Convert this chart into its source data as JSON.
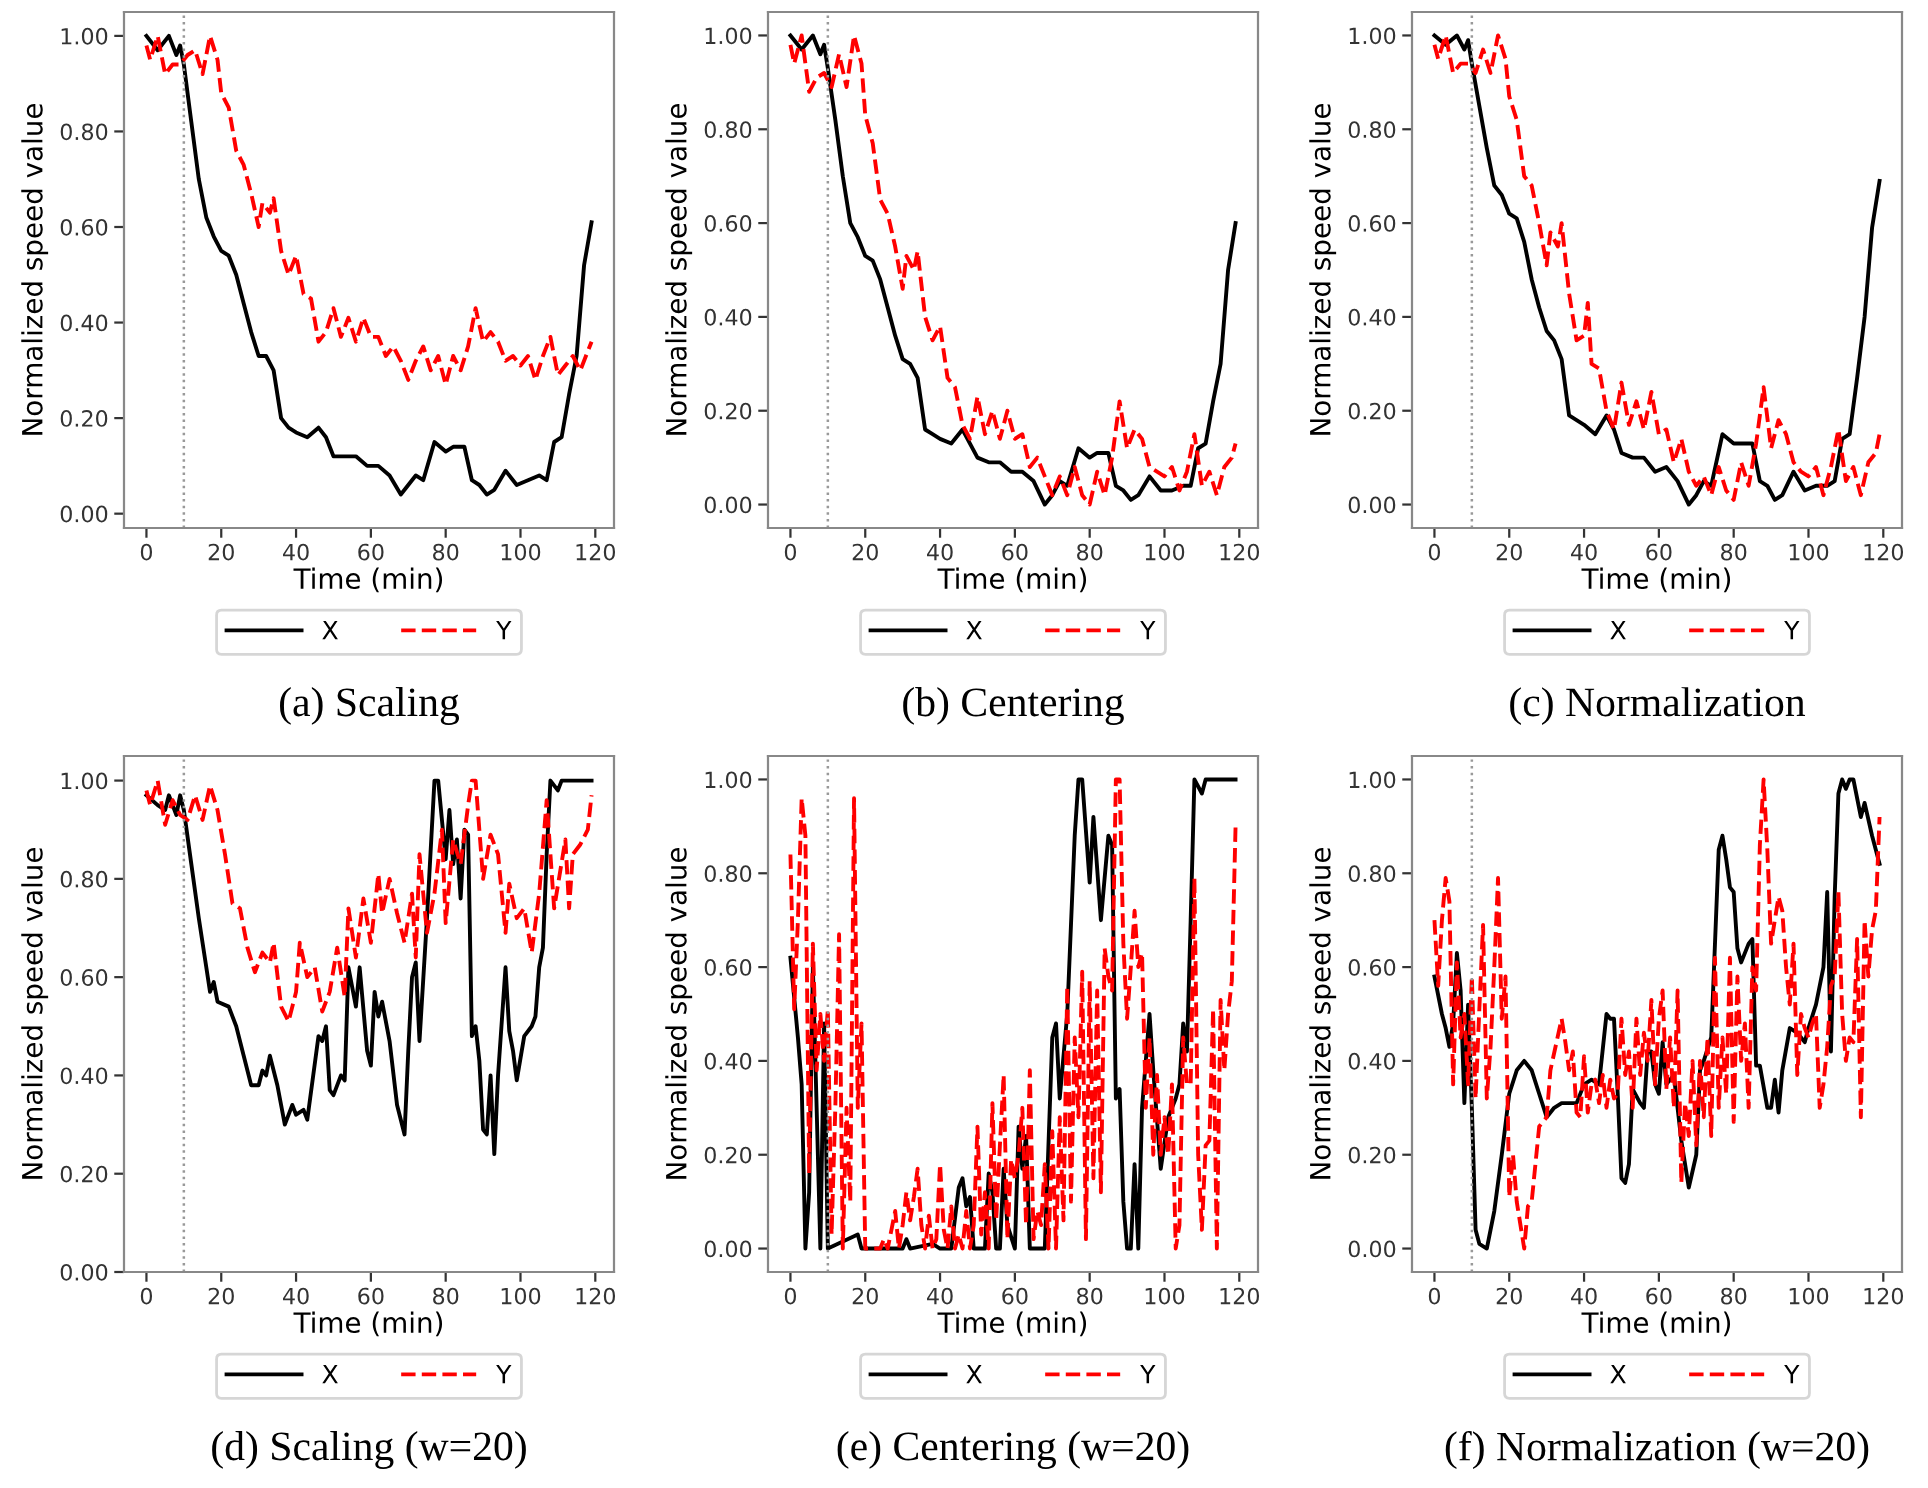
{
  "chart_data": [
    {
      "type": "line",
      "title": "(a) Scaling",
      "xlabel": "Time (min)",
      "ylabel": "Normalized speed value",
      "xlim": [
        -6,
        125
      ],
      "xticks": [
        0,
        20,
        40,
        60,
        80,
        100,
        120
      ],
      "ylim": [
        -0.03,
        1.05
      ],
      "yticks": [
        {
          "value": 0,
          "label": "0.00"
        },
        {
          "value": 0.2,
          "label": "0.20"
        },
        {
          "value": 0.4,
          "label": "0.40"
        },
        {
          "value": 0.6,
          "label": "0.60"
        },
        {
          "value": 0.8,
          "label": "0.80"
        },
        {
          "value": 1,
          "label": "1.00"
        }
      ],
      "legend": "bottom",
      "ref_lines": [
        {
          "axis": "x",
          "value": 10,
          "color": "#999999",
          "line_style": "dotted"
        }
      ],
      "series": [
        {
          "name": "X",
          "color": "#000000",
          "line_style": "solid",
          "x": [
            0,
            3,
            6,
            8,
            9,
            10,
            12,
            14,
            16,
            18,
            20,
            22,
            24,
            26,
            28,
            30,
            32,
            34,
            36,
            38,
            40,
            43,
            46,
            48,
            50,
            53,
            56,
            59,
            62,
            65,
            68,
            70,
            72,
            74,
            77,
            80,
            82,
            85,
            87,
            89,
            91,
            93,
            96,
            99,
            102,
            105,
            107,
            109,
            111,
            113,
            115,
            117,
            119
          ],
          "values": [
            1.0,
            0.97,
            1.0,
            0.96,
            0.98,
            0.94,
            0.82,
            0.7,
            0.62,
            0.58,
            0.55,
            0.54,
            0.5,
            0.44,
            0.38,
            0.33,
            0.33,
            0.3,
            0.2,
            0.18,
            0.17,
            0.16,
            0.18,
            0.16,
            0.12,
            0.12,
            0.12,
            0.1,
            0.1,
            0.08,
            0.04,
            0.06,
            0.08,
            0.07,
            0.15,
            0.13,
            0.14,
            0.14,
            0.07,
            0.06,
            0.04,
            0.05,
            0.09,
            0.06,
            0.07,
            0.08,
            0.07,
            0.15,
            0.16,
            0.25,
            0.33,
            0.52,
            0.61
          ]
        },
        {
          "name": "Y",
          "color": "#ff0000",
          "line_style": "dashed",
          "x": [
            0,
            1,
            3,
            5,
            7,
            9,
            11,
            13,
            15,
            17,
            19,
            20,
            22,
            24,
            26,
            28,
            30,
            31,
            33,
            34,
            36,
            38,
            40,
            42,
            44,
            46,
            48,
            50,
            52,
            54,
            56,
            58,
            60,
            62,
            64,
            66,
            68,
            70,
            72,
            74,
            76,
            78,
            80,
            82,
            84,
            86,
            88,
            90,
            92,
            94,
            96,
            98,
            100,
            102,
            104,
            106,
            108,
            110,
            112,
            114,
            116,
            118,
            119
          ],
          "values": [
            0.98,
            0.95,
            1.0,
            0.92,
            0.94,
            0.94,
            0.96,
            0.97,
            0.92,
            1.0,
            0.95,
            0.88,
            0.85,
            0.76,
            0.73,
            0.67,
            0.6,
            0.65,
            0.63,
            0.66,
            0.55,
            0.5,
            0.54,
            0.46,
            0.45,
            0.36,
            0.38,
            0.43,
            0.37,
            0.41,
            0.36,
            0.41,
            0.37,
            0.37,
            0.33,
            0.35,
            0.32,
            0.28,
            0.32,
            0.35,
            0.3,
            0.33,
            0.27,
            0.33,
            0.3,
            0.35,
            0.43,
            0.36,
            0.38,
            0.36,
            0.32,
            0.33,
            0.31,
            0.33,
            0.28,
            0.33,
            0.37,
            0.29,
            0.31,
            0.33,
            0.3,
            0.34,
            0.36
          ]
        }
      ]
    },
    {
      "type": "line",
      "title": "(b) Centering",
      "xlabel": "Time (min)",
      "ylabel": "Normalized speed value",
      "xlim": [
        -6,
        125
      ],
      "xticks": [
        0,
        20,
        40,
        60,
        80,
        100,
        120
      ],
      "ylim": [
        -0.05,
        1.05
      ],
      "yticks": [
        {
          "value": 0,
          "label": "0.00"
        },
        {
          "value": 0.2,
          "label": "0.20"
        },
        {
          "value": 0.4,
          "label": "0.40"
        },
        {
          "value": 0.6,
          "label": "0.60"
        },
        {
          "value": 0.8,
          "label": "0.80"
        },
        {
          "value": 1,
          "label": "1.00"
        }
      ],
      "legend": "bottom",
      "ref_lines": [
        {
          "axis": "x",
          "value": 10,
          "color": "#999999",
          "line_style": "dotted"
        }
      ],
      "series": [
        {
          "name": "X",
          "color": "#000000",
          "line_style": "solid",
          "x": [
            0,
            3,
            6,
            8,
            9,
            10,
            12,
            14,
            16,
            18,
            20,
            22,
            24,
            26,
            28,
            30,
            32,
            34,
            36,
            38,
            40,
            43,
            46,
            48,
            50,
            53,
            56,
            59,
            62,
            65,
            68,
            70,
            72,
            74,
            77,
            80,
            82,
            85,
            87,
            89,
            91,
            93,
            96,
            99,
            102,
            105,
            107,
            109,
            111,
            113,
            115,
            117,
            119
          ],
          "values": [
            1.0,
            0.97,
            1.0,
            0.96,
            0.98,
            0.93,
            0.82,
            0.7,
            0.6,
            0.57,
            0.53,
            0.52,
            0.48,
            0.42,
            0.36,
            0.31,
            0.3,
            0.27,
            0.16,
            0.15,
            0.14,
            0.13,
            0.16,
            0.13,
            0.1,
            0.09,
            0.09,
            0.07,
            0.07,
            0.05,
            0.0,
            0.02,
            0.05,
            0.04,
            0.12,
            0.1,
            0.11,
            0.11,
            0.04,
            0.03,
            0.01,
            0.02,
            0.06,
            0.03,
            0.03,
            0.04,
            0.04,
            0.12,
            0.13,
            0.22,
            0.3,
            0.5,
            0.6
          ]
        },
        {
          "name": "Y",
          "color": "#ff0000",
          "line_style": "dashed",
          "x": [
            0,
            1,
            3,
            5,
            7,
            9,
            11,
            13,
            15,
            17,
            19,
            20,
            22,
            24,
            26,
            28,
            30,
            31,
            33,
            34,
            36,
            38,
            40,
            42,
            44,
            46,
            48,
            50,
            52,
            54,
            56,
            58,
            60,
            62,
            64,
            66,
            68,
            70,
            72,
            74,
            76,
            78,
            80,
            82,
            84,
            86,
            88,
            90,
            92,
            94,
            96,
            98,
            100,
            102,
            104,
            106,
            108,
            110,
            112,
            114,
            116,
            118,
            119
          ],
          "values": [
            0.98,
            0.94,
            1.0,
            0.88,
            0.91,
            0.92,
            0.89,
            0.96,
            0.89,
            1.0,
            0.94,
            0.83,
            0.77,
            0.65,
            0.62,
            0.55,
            0.46,
            0.53,
            0.5,
            0.54,
            0.4,
            0.35,
            0.38,
            0.27,
            0.25,
            0.17,
            0.14,
            0.23,
            0.15,
            0.2,
            0.14,
            0.2,
            0.14,
            0.15,
            0.08,
            0.1,
            0.06,
            0.02,
            0.06,
            0.02,
            0.08,
            0.02,
            0.0,
            0.07,
            0.02,
            0.1,
            0.22,
            0.12,
            0.16,
            0.14,
            0.08,
            0.07,
            0.06,
            0.08,
            0.03,
            0.07,
            0.15,
            0.04,
            0.07,
            0.02,
            0.08,
            0.1,
            0.13
          ]
        }
      ]
    },
    {
      "type": "line",
      "title": "(c) Normalization",
      "xlabel": "Time (min)",
      "ylabel": "Normalized speed value",
      "xlim": [
        -6,
        125
      ],
      "xticks": [
        0,
        20,
        40,
        60,
        80,
        100,
        120
      ],
      "ylim": [
        -0.05,
        1.05
      ],
      "yticks": [
        {
          "value": 0,
          "label": "0.00"
        },
        {
          "value": 0.2,
          "label": "0.20"
        },
        {
          "value": 0.4,
          "label": "0.40"
        },
        {
          "value": 0.6,
          "label": "0.60"
        },
        {
          "value": 0.8,
          "label": "0.80"
        },
        {
          "value": 1,
          "label": "1.00"
        }
      ],
      "legend": "bottom",
      "ref_lines": [
        {
          "axis": "x",
          "value": 10,
          "color": "#999999",
          "line_style": "dotted"
        }
      ],
      "series": [
        {
          "name": "X",
          "color": "#000000",
          "line_style": "solid",
          "x": [
            0,
            3,
            6,
            8,
            9,
            10,
            12,
            14,
            16,
            18,
            20,
            22,
            24,
            26,
            28,
            30,
            32,
            34,
            36,
            38,
            40,
            43,
            46,
            48,
            50,
            53,
            56,
            59,
            62,
            65,
            68,
            70,
            72,
            74,
            77,
            80,
            82,
            85,
            87,
            89,
            91,
            93,
            96,
            99,
            102,
            105,
            107,
            109,
            111,
            113,
            115,
            117,
            119
          ],
          "values": [
            1.0,
            0.98,
            1.0,
            0.97,
            0.99,
            0.94,
            0.85,
            0.76,
            0.68,
            0.66,
            0.62,
            0.61,
            0.56,
            0.48,
            0.42,
            0.37,
            0.35,
            0.31,
            0.19,
            0.18,
            0.17,
            0.15,
            0.19,
            0.16,
            0.11,
            0.1,
            0.1,
            0.07,
            0.08,
            0.05,
            0.0,
            0.02,
            0.05,
            0.04,
            0.15,
            0.13,
            0.13,
            0.13,
            0.05,
            0.04,
            0.01,
            0.02,
            0.07,
            0.03,
            0.04,
            0.04,
            0.05,
            0.14,
            0.15,
            0.27,
            0.4,
            0.59,
            0.69
          ]
        },
        {
          "name": "Y",
          "color": "#ff0000",
          "line_style": "dashed",
          "x": [
            0,
            1,
            3,
            5,
            7,
            9,
            11,
            13,
            15,
            17,
            19,
            20,
            22,
            24,
            26,
            28,
            30,
            31,
            33,
            34,
            36,
            38,
            40,
            41,
            42,
            44,
            46,
            48,
            50,
            52,
            54,
            56,
            58,
            60,
            62,
            64,
            66,
            68,
            70,
            72,
            74,
            76,
            78,
            80,
            82,
            84,
            86,
            88,
            90,
            92,
            94,
            96,
            98,
            100,
            102,
            104,
            106,
            108,
            110,
            112,
            114,
            116,
            118,
            119
          ],
          "values": [
            0.98,
            0.95,
            1.0,
            0.92,
            0.94,
            0.94,
            0.92,
            0.97,
            0.92,
            1.0,
            0.95,
            0.87,
            0.82,
            0.7,
            0.68,
            0.6,
            0.51,
            0.58,
            0.55,
            0.6,
            0.45,
            0.35,
            0.36,
            0.43,
            0.3,
            0.29,
            0.2,
            0.16,
            0.26,
            0.17,
            0.22,
            0.16,
            0.24,
            0.15,
            0.16,
            0.09,
            0.14,
            0.07,
            0.04,
            0.06,
            0.02,
            0.08,
            0.03,
            0.01,
            0.09,
            0.04,
            0.13,
            0.25,
            0.12,
            0.18,
            0.15,
            0.09,
            0.07,
            0.06,
            0.08,
            0.02,
            0.08,
            0.16,
            0.05,
            0.08,
            0.02,
            0.09,
            0.11,
            0.15
          ]
        }
      ]
    },
    {
      "type": "line",
      "title": "(d) Scaling (w=20)",
      "xlabel": "Time (min)",
      "ylabel": "Normalized speed value",
      "xlim": [
        -6,
        125
      ],
      "xticks": [
        0,
        20,
        40,
        60,
        80,
        100,
        120
      ],
      "ylim": [
        0,
        1.05
      ],
      "yticks": [
        {
          "value": 0,
          "label": "0.00"
        },
        {
          "value": 0.2,
          "label": "0.20"
        },
        {
          "value": 0.4,
          "label": "0.40"
        },
        {
          "value": 0.6,
          "label": "0.60"
        },
        {
          "value": 0.8,
          "label": "0.80"
        },
        {
          "value": 1,
          "label": "1.00"
        }
      ],
      "legend": "bottom",
      "ref_lines": [
        {
          "axis": "x",
          "value": 10,
          "color": "#999999",
          "line_style": "dotted"
        }
      ],
      "series": [
        {
          "name": "X",
          "color": "#000000",
          "line_style": "solid",
          "x": [
            0,
            3,
            5,
            6,
            8,
            9,
            10,
            12,
            14,
            16,
            17,
            18,
            19,
            22,
            24,
            26,
            28,
            30,
            31,
            32,
            33,
            35,
            37,
            39,
            40,
            42,
            43,
            46,
            47,
            48,
            49,
            50,
            52,
            53,
            54,
            56,
            57,
            59,
            60,
            61,
            62,
            63,
            65,
            67,
            69,
            70,
            71,
            72,
            73,
            75,
            77,
            78,
            80,
            81,
            82,
            83,
            84,
            85,
            86,
            87,
            88,
            89,
            90,
            91,
            92,
            93,
            94,
            96,
            97,
            98,
            99,
            101,
            103,
            104,
            105,
            106,
            107,
            108,
            110,
            111,
            119
          ],
          "values": [
            0.97,
            0.95,
            0.94,
            0.97,
            0.93,
            0.97,
            0.94,
            0.83,
            0.72,
            0.62,
            0.57,
            0.59,
            0.55,
            0.54,
            0.5,
            0.44,
            0.38,
            0.38,
            0.41,
            0.4,
            0.44,
            0.38,
            0.3,
            0.34,
            0.32,
            0.33,
            0.31,
            0.48,
            0.47,
            0.5,
            0.37,
            0.36,
            0.4,
            0.39,
            0.62,
            0.54,
            0.62,
            0.45,
            0.42,
            0.57,
            0.52,
            0.55,
            0.47,
            0.34,
            0.28,
            0.45,
            0.6,
            0.63,
            0.47,
            0.72,
            1.0,
            1.0,
            0.84,
            0.94,
            0.83,
            0.88,
            0.76,
            0.9,
            0.89,
            0.48,
            0.5,
            0.43,
            0.29,
            0.28,
            0.4,
            0.24,
            0.4,
            0.62,
            0.49,
            0.45,
            0.39,
            0.48,
            0.5,
            0.52,
            0.62,
            0.66,
            0.85,
            1.0,
            0.98,
            1.0,
            1.0
          ]
        },
        {
          "name": "Y",
          "color": "#ff0000",
          "line_style": "dashed",
          "x": [
            0,
            1,
            3,
            5,
            7,
            9,
            11,
            13,
            15,
            17,
            19,
            21,
            23,
            25,
            27,
            29,
            31,
            33,
            34,
            36,
            38,
            40,
            41,
            43,
            45,
            47,
            49,
            51,
            53,
            54,
            56,
            58,
            60,
            62,
            63,
            65,
            67,
            69,
            71,
            72,
            73,
            75,
            77,
            79,
            80,
            82,
            84,
            86,
            87,
            88,
            90,
            92,
            94,
            96,
            97,
            99,
            101,
            103,
            105,
            107,
            109,
            112,
            113,
            114,
            116,
            118,
            119
          ],
          "values": [
            0.98,
            0.95,
            1.0,
            0.91,
            0.96,
            0.93,
            0.92,
            0.97,
            0.92,
            0.99,
            0.94,
            0.85,
            0.75,
            0.74,
            0.66,
            0.61,
            0.65,
            0.63,
            0.67,
            0.54,
            0.51,
            0.57,
            0.67,
            0.6,
            0.62,
            0.53,
            0.57,
            0.66,
            0.56,
            0.74,
            0.64,
            0.76,
            0.67,
            0.81,
            0.73,
            0.8,
            0.73,
            0.67,
            0.77,
            0.64,
            0.85,
            0.69,
            0.77,
            0.9,
            0.71,
            0.88,
            0.83,
            0.95,
            1.0,
            1.0,
            0.8,
            0.89,
            0.85,
            0.69,
            0.79,
            0.72,
            0.74,
            0.65,
            0.77,
            0.96,
            0.74,
            0.88,
            0.74,
            0.85,
            0.87,
            0.9,
            0.97
          ]
        }
      ]
    },
    {
      "type": "line",
      "title": "(e) Centering (w=20)",
      "xlabel": "Time (min)",
      "ylabel": "Normalized speed value",
      "xlim": [
        -6,
        125
      ],
      "xticks": [
        0,
        20,
        40,
        60,
        80,
        100,
        120
      ],
      "ylim": [
        -0.05,
        1.05
      ],
      "yticks": [
        {
          "value": 0,
          "label": "0.00"
        },
        {
          "value": 0.2,
          "label": "0.20"
        },
        {
          "value": 0.4,
          "label": "0.40"
        },
        {
          "value": 0.6,
          "label": "0.60"
        },
        {
          "value": 0.8,
          "label": "0.80"
        },
        {
          "value": 1,
          "label": "1.00"
        }
      ],
      "legend": "bottom",
      "ref_lines": [
        {
          "axis": "x",
          "value": 10,
          "color": "#999999",
          "line_style": "dotted"
        }
      ],
      "series": [
        {
          "name": "X",
          "color": "#000000",
          "line_style": "solid",
          "x": [
            0,
            2,
            3,
            4,
            5,
            6,
            7,
            8,
            9,
            10,
            18,
            19,
            30,
            31,
            32,
            38,
            40,
            43,
            45,
            46,
            47,
            48,
            49,
            52,
            53,
            54,
            55,
            56,
            57,
            58,
            60,
            61,
            62,
            63,
            64,
            65,
            67,
            68,
            70,
            71,
            72,
            74,
            76,
            77,
            78,
            80,
            81,
            83,
            85,
            86,
            87,
            88,
            89,
            90,
            91,
            92,
            93,
            94,
            96,
            97,
            99,
            101,
            103,
            104,
            105,
            106,
            107,
            108,
            110,
            111,
            119
          ],
          "values": [
            0.62,
            0.45,
            0.35,
            0.0,
            0.12,
            0.6,
            0.3,
            0.0,
            0.48,
            0.0,
            0.03,
            0.0,
            0.0,
            0.02,
            0.0,
            0.01,
            0.0,
            0.0,
            0.13,
            0.15,
            0.09,
            0.11,
            0.0,
            0.0,
            0.16,
            0.12,
            0.0,
            0.0,
            0.17,
            0.05,
            0.0,
            0.26,
            0.17,
            0.24,
            0.0,
            0.0,
            0.0,
            0.0,
            0.45,
            0.48,
            0.32,
            0.5,
            0.88,
            1.0,
            1.0,
            0.78,
            0.92,
            0.7,
            0.88,
            0.86,
            0.32,
            0.34,
            0.1,
            0.0,
            0.0,
            0.18,
            0.0,
            0.3,
            0.5,
            0.38,
            0.17,
            0.28,
            0.32,
            0.35,
            0.48,
            0.42,
            0.7,
            1.0,
            0.97,
            1.0,
            1.0
          ]
        },
        {
          "name": "Y",
          "color": "#ff0000",
          "line_style": "dashed",
          "x": [
            0,
            1,
            2,
            3,
            4,
            5,
            6,
            7,
            8,
            9,
            10,
            11,
            12,
            13,
            14,
            15,
            16,
            17,
            18,
            19,
            20,
            24,
            25,
            26,
            27,
            28,
            29,
            30,
            31,
            32,
            33,
            34,
            35,
            36,
            37,
            38,
            39,
            40,
            41,
            42,
            43,
            44,
            45,
            46,
            47,
            48,
            49,
            50,
            51,
            52,
            53,
            54,
            55,
            56,
            57,
            58,
            59,
            60,
            61,
            62,
            63,
            64,
            65,
            66,
            67,
            68,
            69,
            70,
            71,
            72,
            73,
            74,
            75,
            76,
            77,
            78,
            79,
            80,
            81,
            82,
            83,
            84,
            85,
            86,
            87,
            88,
            89,
            90,
            91,
            92,
            93,
            94,
            95,
            96,
            97,
            98,
            99,
            100,
            101,
            102,
            103,
            104,
            105,
            106,
            107,
            108,
            109,
            110,
            111,
            112,
            113,
            114,
            115,
            116,
            117,
            118,
            119
          ],
          "values": [
            0.84,
            0.51,
            0.7,
            0.96,
            0.88,
            0.16,
            0.65,
            0.38,
            0.5,
            0.4,
            0.51,
            0.03,
            0.3,
            0.67,
            0.0,
            0.3,
            0.1,
            0.96,
            0.3,
            0.48,
            0.0,
            0.0,
            0.02,
            0.0,
            0.04,
            0.08,
            0.0,
            0.05,
            0.12,
            0.06,
            0.11,
            0.17,
            0.05,
            0.0,
            0.07,
            0.0,
            0.02,
            0.18,
            0.04,
            0.0,
            0.09,
            0.0,
            0.03,
            0.0,
            0.08,
            0.0,
            0.05,
            0.26,
            0.03,
            0.12,
            0.0,
            0.31,
            0.06,
            0.22,
            0.37,
            0.02,
            0.19,
            0.15,
            0.2,
            0.3,
            0.05,
            0.38,
            0.02,
            0.08,
            0.05,
            0.18,
            0.0,
            0.25,
            0.0,
            0.28,
            0.06,
            0.56,
            0.1,
            0.45,
            0.28,
            0.59,
            0.02,
            0.57,
            0.15,
            0.55,
            0.12,
            0.64,
            0.58,
            0.55,
            1.0,
            1.0,
            0.65,
            0.49,
            0.6,
            0.72,
            0.6,
            0.63,
            0.3,
            0.45,
            0.2,
            0.37,
            0.2,
            0.28,
            0.2,
            0.35,
            0.0,
            0.05,
            0.45,
            0.35,
            0.35,
            0.79,
            0.2,
            0.04,
            0.22,
            0.23,
            0.51,
            0.0,
            0.53,
            0.38,
            0.5,
            0.57,
            0.9
          ]
        }
      ]
    },
    {
      "type": "line",
      "title": "(f) Normalization (w=20)",
      "xlabel": "Time (min)",
      "ylabel": "Normalized speed value",
      "xlim": [
        -6,
        125
      ],
      "xticks": [
        0,
        20,
        40,
        60,
        80,
        100,
        120
      ],
      "ylim": [
        -0.05,
        1.05
      ],
      "yticks": [
        {
          "value": 0,
          "label": "0.00"
        },
        {
          "value": 0.2,
          "label": "0.20"
        },
        {
          "value": 0.4,
          "label": "0.40"
        },
        {
          "value": 0.6,
          "label": "0.60"
        },
        {
          "value": 0.8,
          "label": "0.80"
        },
        {
          "value": 1,
          "label": "1.00"
        }
      ],
      "legend": "bottom",
      "ref_lines": [
        {
          "axis": "x",
          "value": 10,
          "color": "#999999",
          "line_style": "dotted"
        }
      ],
      "series": [
        {
          "name": "X",
          "color": "#000000",
          "line_style": "solid",
          "x": [
            0,
            2,
            3,
            4,
            5,
            6,
            7,
            8,
            9,
            10,
            11,
            12,
            14,
            16,
            18,
            20,
            22,
            24,
            26,
            28,
            30,
            32,
            34,
            36,
            38,
            40,
            42,
            44,
            46,
            47,
            48,
            49,
            50,
            51,
            52,
            53,
            55,
            56,
            57,
            58,
            59,
            60,
            61,
            62,
            64,
            66,
            68,
            70,
            71,
            72,
            74,
            76,
            77,
            78,
            79,
            80,
            81,
            82,
            84,
            85,
            86,
            87,
            89,
            90,
            91,
            92,
            93,
            95,
            97,
            99,
            100,
            102,
            104,
            105,
            106,
            107,
            108,
            109,
            110,
            111,
            112,
            114,
            115,
            117,
            119
          ],
          "values": [
            0.58,
            0.5,
            0.47,
            0.43,
            0.48,
            0.63,
            0.55,
            0.31,
            0.52,
            0.3,
            0.04,
            0.01,
            0.0,
            0.08,
            0.2,
            0.33,
            0.38,
            0.4,
            0.38,
            0.33,
            0.28,
            0.3,
            0.31,
            0.31,
            0.31,
            0.35,
            0.36,
            0.35,
            0.5,
            0.49,
            0.49,
            0.33,
            0.15,
            0.14,
            0.18,
            0.34,
            0.31,
            0.3,
            0.42,
            0.42,
            0.35,
            0.33,
            0.44,
            0.35,
            0.37,
            0.23,
            0.13,
            0.2,
            0.38,
            0.4,
            0.45,
            0.85,
            0.88,
            0.83,
            0.77,
            0.76,
            0.64,
            0.61,
            0.65,
            0.66,
            0.39,
            0.39,
            0.3,
            0.3,
            0.36,
            0.29,
            0.38,
            0.47,
            0.46,
            0.44,
            0.47,
            0.52,
            0.6,
            0.76,
            0.42,
            0.75,
            0.97,
            1.0,
            0.98,
            1.0,
            1.0,
            0.92,
            0.95,
            0.88,
            0.82
          ]
        },
        {
          "name": "Y",
          "color": "#ff0000",
          "line_style": "dashed",
          "x": [
            0,
            1,
            2,
            3,
            4,
            5,
            6,
            7,
            8,
            9,
            10,
            11,
            12,
            13,
            14,
            15,
            16,
            17,
            18,
            19,
            20,
            21,
            22,
            24,
            25,
            26,
            28,
            30,
            31,
            34,
            35,
            36,
            37,
            38,
            39,
            40,
            41,
            42,
            43,
            44,
            45,
            46,
            47,
            48,
            49,
            50,
            51,
            52,
            53,
            54,
            55,
            56,
            57,
            58,
            59,
            60,
            61,
            62,
            63,
            64,
            65,
            66,
            67,
            68,
            69,
            70,
            71,
            72,
            73,
            74,
            75,
            76,
            77,
            78,
            79,
            80,
            81,
            82,
            83,
            84,
            85,
            86,
            87,
            88,
            89,
            90,
            91,
            92,
            93,
            94,
            95,
            96,
            97,
            98,
            99,
            100,
            101,
            102,
            103,
            104,
            105,
            106,
            107,
            108,
            109,
            110,
            111,
            112,
            113,
            114,
            115,
            116,
            117,
            118,
            119
          ],
          "values": [
            0.7,
            0.56,
            0.7,
            0.79,
            0.74,
            0.35,
            0.61,
            0.45,
            0.5,
            0.35,
            0.58,
            0.32,
            0.51,
            0.69,
            0.32,
            0.43,
            0.6,
            0.79,
            0.49,
            0.58,
            0.11,
            0.2,
            0.1,
            0.0,
            0.09,
            0.1,
            0.26,
            0.28,
            0.38,
            0.49,
            0.44,
            0.38,
            0.42,
            0.29,
            0.28,
            0.41,
            0.29,
            0.35,
            0.36,
            0.31,
            0.37,
            0.3,
            0.36,
            0.32,
            0.33,
            0.49,
            0.37,
            0.42,
            0.3,
            0.49,
            0.37,
            0.46,
            0.4,
            0.53,
            0.35,
            0.49,
            0.55,
            0.34,
            0.45,
            0.3,
            0.55,
            0.14,
            0.31,
            0.24,
            0.4,
            0.22,
            0.4,
            0.28,
            0.45,
            0.24,
            0.62,
            0.3,
            0.45,
            0.33,
            0.62,
            0.27,
            0.58,
            0.4,
            0.48,
            0.3,
            0.6,
            0.55,
            0.86,
            1.0,
            0.85,
            0.65,
            0.7,
            0.75,
            0.72,
            0.6,
            0.52,
            0.65,
            0.37,
            0.5,
            0.47,
            0.45,
            0.48,
            0.5,
            0.3,
            0.35,
            0.43,
            0.56,
            0.58,
            0.76,
            0.5,
            0.4,
            0.45,
            0.44,
            0.66,
            0.28,
            0.7,
            0.58,
            0.68,
            0.72,
            0.92
          ]
        }
      ]
    }
  ]
}
